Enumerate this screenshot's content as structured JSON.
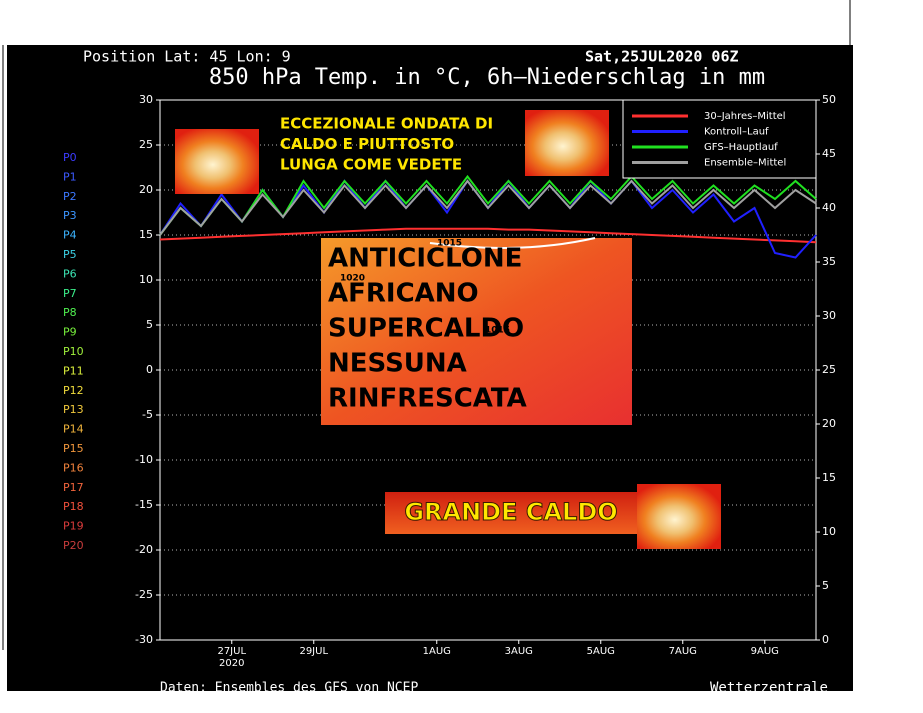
{
  "chart_data": {
    "type": "line",
    "header_left": "Position  Lat: 45 Lon: 9",
    "header_right": "Sat,25JUL2020 06Z",
    "title": "850 hPa Temp. in °C, 6h–Niederschlag in mm",
    "footer_left": "Daten: Ensembles des GFS von NCEP",
    "footer_right": "Wetterzentrale",
    "x": [
      0,
      0.5,
      1,
      1.5,
      2,
      2.5,
      3,
      3.5,
      4,
      4.5,
      5,
      5.5,
      6,
      6.5,
      7,
      7.5,
      8,
      8.5,
      9,
      9.5,
      10,
      10.5,
      11,
      11.5,
      12,
      12.5,
      13,
      13.5,
      14,
      14.5,
      15,
      15.5,
      16
    ],
    "xlim": [
      0,
      16
    ],
    "xticks": [
      {
        "value": 1.75,
        "label": "27JUL"
      },
      {
        "value": 3.75,
        "label": "29JUL"
      },
      {
        "value": 6.75,
        "label": "1AUG"
      },
      {
        "value": 8.75,
        "label": "3AUG"
      },
      {
        "value": 10.75,
        "label": "5AUG"
      },
      {
        "value": 12.75,
        "label": "7AUG"
      },
      {
        "value": 14.75,
        "label": "9AUG"
      }
    ],
    "x_year": "2020",
    "ylim": [
      -30,
      30
    ],
    "yticks": [
      30,
      25,
      20,
      15,
      10,
      5,
      0,
      -5,
      -10,
      -15,
      -20,
      -25,
      -30
    ],
    "y2lim": [
      0,
      50
    ],
    "y2ticks": [
      50,
      45,
      40,
      35,
      30,
      25,
      20,
      15,
      10,
      5,
      0
    ],
    "series": [
      {
        "name": "30–Jahres–Mittel",
        "color": "#ff3030",
        "values": [
          14.5,
          14.6,
          14.7,
          14.8,
          14.9,
          15,
          15.1,
          15.2,
          15.3,
          15.4,
          15.5,
          15.6,
          15.7,
          15.7,
          15.7,
          15.7,
          15.7,
          15.6,
          15.6,
          15.5,
          15.4,
          15.3,
          15.2,
          15.1,
          15,
          14.9,
          14.8,
          14.7,
          14.6,
          14.5,
          14.4,
          14.3,
          14.2
        ]
      },
      {
        "name": "Kontroll–Lauf",
        "color": "#2020ff",
        "values": [
          15,
          18.5,
          16,
          19.5,
          16.5,
          20,
          17,
          20.5,
          17.5,
          21,
          18,
          21,
          18,
          20.5,
          17.5,
          21,
          18,
          21,
          18,
          20.5,
          18,
          21,
          18.5,
          21,
          18,
          20,
          17.5,
          19.5,
          16.5,
          18,
          13,
          12.5,
          15
        ]
      },
      {
        "name": "GFS–Hauptlauf",
        "color": "#20e020",
        "values": [
          15,
          18,
          16,
          19,
          16.5,
          20,
          17,
          21,
          18,
          21,
          18.5,
          21,
          18.5,
          21,
          18.5,
          21.5,
          18.5,
          21,
          18.5,
          21,
          18.5,
          21,
          19,
          21.5,
          19,
          21,
          18.5,
          20.5,
          18.5,
          20.5,
          19,
          21,
          19
        ]
      },
      {
        "name": "Ensemble–Mittel",
        "color": "#a0a0a0",
        "values": [
          15,
          18,
          16,
          19,
          16.5,
          19.5,
          17,
          20,
          17.5,
          20.5,
          18,
          20.5,
          18,
          20.5,
          18,
          21,
          18,
          20.5,
          18,
          20.5,
          18,
          20.5,
          18.5,
          21,
          18.5,
          20.5,
          18,
          20,
          18,
          20,
          18,
          20,
          18.5
        ]
      }
    ],
    "members": [
      {
        "name": "P0",
        "color": "#3c3cff"
      },
      {
        "name": "P1",
        "color": "#3c5aff"
      },
      {
        "name": "P2",
        "color": "#3c78ff"
      },
      {
        "name": "P3",
        "color": "#3c96ff"
      },
      {
        "name": "P4",
        "color": "#3cb4ff"
      },
      {
        "name": "P5",
        "color": "#3cd2e6"
      },
      {
        "name": "P6",
        "color": "#3ce6b4"
      },
      {
        "name": "P7",
        "color": "#3cf08c"
      },
      {
        "name": "P8",
        "color": "#50f050"
      },
      {
        "name": "P9",
        "color": "#78f03c"
      },
      {
        "name": "P10",
        "color": "#a0f03c"
      },
      {
        "name": "P11",
        "color": "#dcf03c"
      },
      {
        "name": "P12",
        "color": "#f0dc3c"
      },
      {
        "name": "P13",
        "color": "#f0c83c"
      },
      {
        "name": "P14",
        "color": "#f0b43c"
      },
      {
        "name": "P15",
        "color": "#f0963c"
      },
      {
        "name": "P16",
        "color": "#f0823c"
      },
      {
        "name": "P17",
        "color": "#f0643c"
      },
      {
        "name": "P18",
        "color": "#f0503c"
      },
      {
        "name": "P19",
        "color": "#dc3c3c"
      },
      {
        "name": "P20",
        "color": "#c83c3c"
      }
    ],
    "headline": [
      "ECCEZIONALE ONDATA DI",
      "CALDO E PIUTTOSTO",
      "LUNGA COME VEDETE"
    ],
    "map_text": [
      "ANTICICLONE",
      "AFRICANO",
      "SUPERCALDO",
      "NESSUNA",
      "RINFRESCATA"
    ],
    "isobars": [
      "1015",
      "1020",
      "1015"
    ],
    "banner": "GRANDE CALDO"
  }
}
